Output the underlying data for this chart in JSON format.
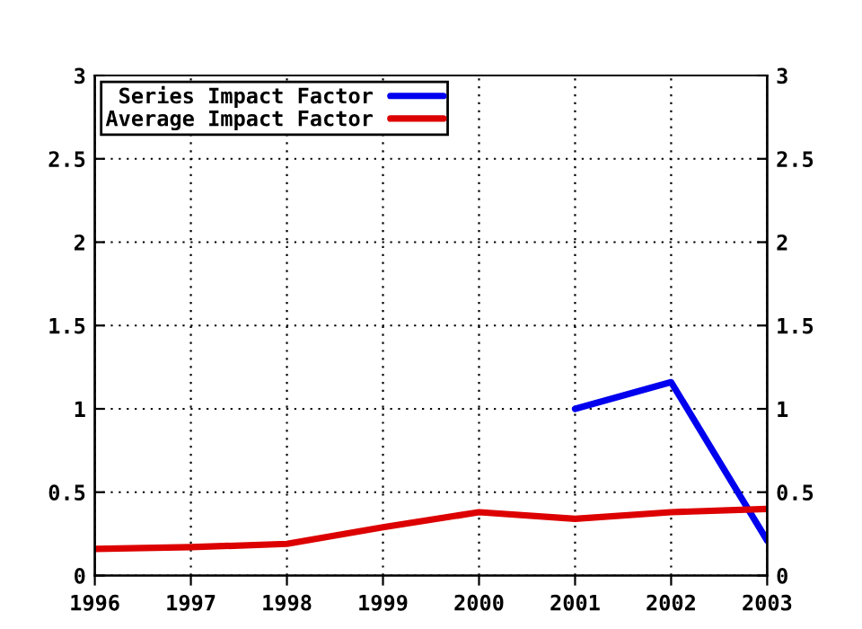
{
  "chart_data": {
    "type": "line",
    "x": [
      1996,
      1997,
      1998,
      1999,
      2000,
      2001,
      2002,
      2003
    ],
    "series": [
      {
        "name": "Series Impact Factor",
        "color": "#0000ee",
        "values": [
          null,
          null,
          null,
          null,
          null,
          1.0,
          1.16,
          0.21
        ]
      },
      {
        "name": "Average Impact Factor",
        "color": "#dd0000",
        "values": [
          0.16,
          0.17,
          0.19,
          0.29,
          0.38,
          0.34,
          0.38,
          0.4
        ]
      }
    ],
    "xlim": [
      1996,
      2003
    ],
    "xticks": [
      1996,
      1997,
      1998,
      1999,
      2000,
      2001,
      2002,
      2003
    ],
    "ylim": [
      0,
      3
    ],
    "yticks": [
      0,
      0.5,
      1,
      1.5,
      2,
      2.5,
      3
    ],
    "y2lim": [
      0,
      3
    ],
    "y2ticks": [
      0,
      0.5,
      1,
      1.5,
      2,
      2.5,
      3
    ],
    "grid": true,
    "legend": "top left",
    "line_style": "solid",
    "marker": "none"
  }
}
